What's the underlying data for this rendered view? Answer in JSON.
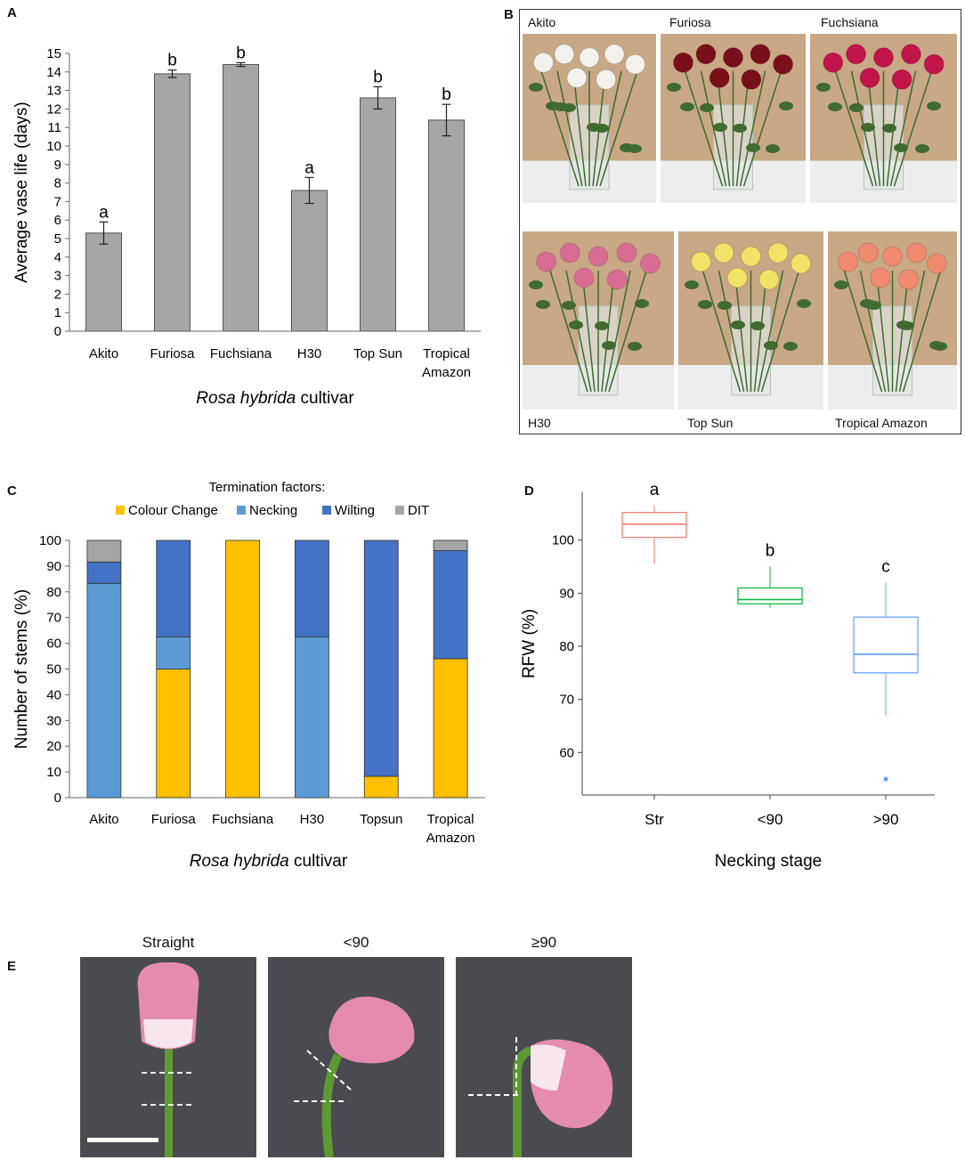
{
  "panels": {
    "A": {
      "letter": "A"
    },
    "B": {
      "letter": "B",
      "top_labels": [
        "Akito",
        "Furiosa",
        "Fuchsiana"
      ],
      "bottom_labels": [
        "H30",
        "Top Sun",
        "Tropical Amazon"
      ]
    },
    "C": {
      "letter": "C"
    },
    "D": {
      "letter": "D"
    },
    "E": {
      "letter": "E",
      "labels": [
        "Straight",
        "<90",
        "≥90"
      ]
    }
  },
  "photo_colors": {
    "backdrop": "#c9a885",
    "table": "#ededed",
    "leaf": "#3f6b2f",
    "Akito": "#f2f1ec",
    "Furiosa": "#7a0f1c",
    "Fuchsiana": "#c0144a",
    "H30": "#d96c95",
    "Top Sun": "#f0e368",
    "Tropical Amazon": "#f28a6f",
    "rose_bg": "#4a4b50",
    "rose_petal": "#e58bb0",
    "rose_light": "#f7e6ee",
    "stem": "#5d9a32"
  },
  "chart_data": [
    {
      "id": "A",
      "type": "bar",
      "title": "",
      "xlabel_italic": "Rosa hybrida",
      "xlabel_rest": " cultivar",
      "ylabel": "Average vase life (days)",
      "ylim": [
        0,
        15
      ],
      "yticks": [
        0,
        1,
        2,
        3,
        4,
        5,
        6,
        7,
        8,
        9,
        10,
        11,
        12,
        13,
        14,
        15
      ],
      "categories": [
        "Akito",
        "Furiosa",
        "Fuchsiana",
        "H30",
        "Top Sun",
        "Tropical Amazon"
      ],
      "category_lines": [
        [
          "Akito"
        ],
        [
          "Furiosa"
        ],
        [
          "Fuchsiana"
        ],
        [
          "H30"
        ],
        [
          "Top Sun"
        ],
        [
          "Tropical",
          "Amazon"
        ]
      ],
      "values": [
        5.3,
        13.9,
        14.4,
        7.6,
        12.6,
        11.4
      ],
      "errors": [
        0.6,
        0.2,
        0.1,
        0.7,
        0.6,
        0.85
      ],
      "letters": [
        "a",
        "b",
        "b",
        "a",
        "b",
        "b"
      ],
      "bar_color": "#a6a6a6"
    },
    {
      "id": "C",
      "type": "bar",
      "stacked": true,
      "legend_title": "Termination factors:",
      "xlabel_italic": "Rosa hybrida",
      "xlabel_rest": " cultivar",
      "ylabel": "Number of stems (%)",
      "ylim": [
        0,
        100
      ],
      "yticks": [
        0,
        10,
        20,
        30,
        40,
        50,
        60,
        70,
        80,
        90,
        100
      ],
      "categories": [
        "Akito",
        "Furiosa",
        "Fuchsiana",
        "H30",
        "Topsun",
        "Tropical Amazon"
      ],
      "category_lines": [
        [
          "Akito"
        ],
        [
          "Furiosa"
        ],
        [
          "Fuchsiana"
        ],
        [
          "H30"
        ],
        [
          "Topsun"
        ],
        [
          "Tropical",
          "Amazon"
        ]
      ],
      "series": [
        {
          "name": "Colour Change",
          "color": "#ffc000",
          "values": [
            0,
            50,
            100,
            0,
            8.3,
            54
          ]
        },
        {
          "name": "Necking",
          "color": "#5b9bd5",
          "values": [
            83.3,
            12.5,
            0,
            62.5,
            0,
            0
          ]
        },
        {
          "name": "Wilting",
          "color": "#4472c4",
          "values": [
            8.3,
            37.5,
            0,
            37.5,
            91.7,
            42
          ]
        },
        {
          "name": "DIT",
          "color": "#a5a5a5",
          "values": [
            8.4,
            0,
            0,
            0,
            0,
            4
          ]
        }
      ]
    },
    {
      "id": "D",
      "type": "box",
      "xlabel": "Necking stage",
      "ylabel": "RFW (%)",
      "ylim": [
        52,
        109
      ],
      "yticks": [
        60,
        70,
        80,
        90,
        100
      ],
      "categories": [
        "Str",
        "<90",
        ">90"
      ],
      "boxes": [
        {
          "min": 95.5,
          "q1": 100.5,
          "median": 103,
          "q3": 105.2,
          "max": 106.5,
          "outliers": [],
          "color": "#f8766d",
          "letter": "a"
        },
        {
          "min": 87.3,
          "q1": 88,
          "median": 88.8,
          "q3": 91,
          "max": 95,
          "outliers": [],
          "color": "#00ba38",
          "letter": "b"
        },
        {
          "min": 67,
          "q1": 75,
          "median": 78.5,
          "q3": 85.5,
          "max": 92,
          "outliers": [
            55
          ],
          "color": "#619cff",
          "letter": "c"
        }
      ]
    }
  ]
}
